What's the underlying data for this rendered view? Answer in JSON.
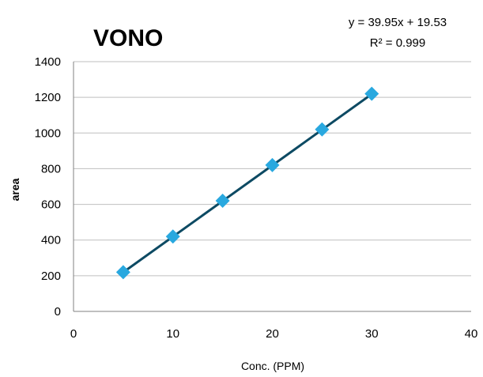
{
  "chart_data": {
    "type": "scatter",
    "title": "VONO",
    "xlabel": "Conc. (PPM)",
    "ylabel": "area",
    "xlim": [
      0,
      40
    ],
    "ylim": [
      0,
      1400
    ],
    "xticks": [
      0,
      10,
      20,
      30,
      40
    ],
    "yticks": [
      0,
      200,
      400,
      600,
      800,
      1000,
      1200,
      1400
    ],
    "grid": true,
    "legend": "none",
    "series": [
      {
        "x": [
          5,
          10,
          15,
          20,
          25,
          30
        ],
        "y": [
          220,
          420,
          620,
          820,
          1020,
          1220
        ],
        "marker": "diamond",
        "color": "#29a8df"
      }
    ],
    "trendline": {
      "slope": 39.95,
      "intercept": 19.53,
      "x_range": [
        5,
        30
      ],
      "color": "#0d4a63"
    },
    "annotations": {
      "equation": "y = 39.95x + 19.53",
      "r_squared": "R² = 0.999"
    }
  }
}
